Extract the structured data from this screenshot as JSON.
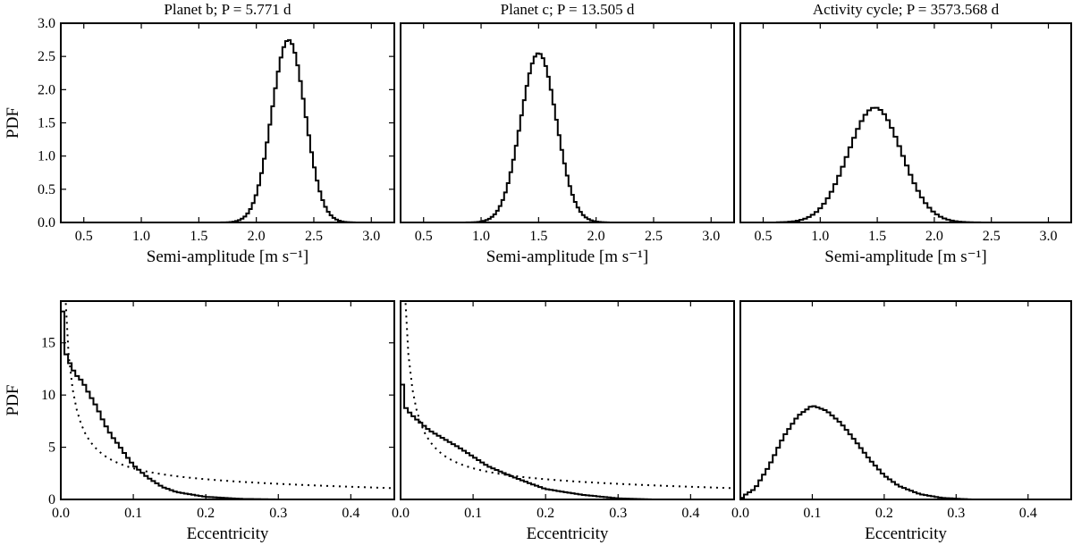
{
  "chart_data": [
    {
      "type": "histogram",
      "title": "Planet b; P = 5.771 d",
      "xlabel": "Semi-amplitude [m s⁻¹]",
      "ylabel": "PDF",
      "xlim": [
        0.3,
        3.2
      ],
      "ylim": [
        0,
        3.0
      ],
      "xticks": [
        "0.5",
        "1.0",
        "1.5",
        "2.0",
        "2.5",
        "3.0"
      ],
      "yticks": [
        "0.0",
        "0.5",
        "1.0",
        "1.5",
        "2.0",
        "2.5",
        "3.0"
      ],
      "grid": false,
      "series": [
        {
          "style": "solid-step",
          "dist": {
            "kind": "gauss",
            "mean": 2.28,
            "sigma": 0.145,
            "peak": 2.75,
            "start": 1.55,
            "end": 3.0,
            "n": 60
          }
        }
      ]
    },
    {
      "type": "histogram",
      "title": "Planet c; P = 13.505 d",
      "xlabel": "Semi-amplitude [m s⁻¹]",
      "ylabel": "",
      "xlim": [
        0.3,
        3.2
      ],
      "ylim": [
        0,
        3.0
      ],
      "xticks": [
        "0.5",
        "1.0",
        "1.5",
        "2.0",
        "2.5",
        "3.0"
      ],
      "yticks": [],
      "grid": false,
      "series": [
        {
          "style": "solid-step",
          "dist": {
            "kind": "gauss",
            "mean": 1.5,
            "sigma": 0.155,
            "peak": 2.55,
            "start": 0.85,
            "end": 2.25,
            "n": 60
          }
        }
      ]
    },
    {
      "type": "histogram",
      "title": "Activity cycle; P = 3573.568 d",
      "xlabel": "Semi-amplitude [m s⁻¹]",
      "ylabel": "",
      "xlim": [
        0.3,
        3.2
      ],
      "ylim": [
        0,
        3.0
      ],
      "xticks": [
        "0.5",
        "1.0",
        "1.5",
        "2.0",
        "2.5",
        "3.0"
      ],
      "yticks": [],
      "grid": false,
      "series": [
        {
          "style": "solid-step",
          "dist": {
            "kind": "gauss",
            "mean": 1.48,
            "sigma": 0.235,
            "peak": 1.73,
            "start": 0.62,
            "end": 2.6,
            "n": 60
          }
        }
      ]
    },
    {
      "type": "histogram",
      "title": "",
      "xlabel": "Eccentricity",
      "ylabel": "PDF",
      "xlim": [
        0.0,
        0.46
      ],
      "ylim": [
        0,
        19
      ],
      "xticks": [
        "0.0",
        "0.1",
        "0.2",
        "0.3",
        "0.4"
      ],
      "yticks": [
        "0",
        "5",
        "10",
        "15"
      ],
      "grid": false,
      "series": [
        {
          "style": "solid-step",
          "dist": {
            "kind": "points",
            "bin": 0.005,
            "end": 0.46,
            "points": [
              [
                0.0,
                18
              ],
              [
                0.005,
                14.4
              ],
              [
                0.01,
                13.4
              ],
              [
                0.02,
                12.0
              ],
              [
                0.03,
                11.3
              ],
              [
                0.04,
                10.0
              ],
              [
                0.05,
                8.8
              ],
              [
                0.06,
                7.3
              ],
              [
                0.07,
                6.1
              ],
              [
                0.08,
                5.2
              ],
              [
                0.09,
                4.2
              ],
              [
                0.1,
                3.3
              ],
              [
                0.12,
                2.1
              ],
              [
                0.14,
                1.2
              ],
              [
                0.16,
                0.7
              ],
              [
                0.2,
                0.25
              ],
              [
                0.25,
                0.05
              ],
              [
                0.3,
                0.0
              ]
            ]
          }
        },
        {
          "style": "dotted",
          "dist": {
            "kind": "prior",
            "a": 0.2,
            "b": 1.2,
            "start": 0.005,
            "end": 0.46,
            "n": 80
          }
        }
      ]
    },
    {
      "type": "histogram",
      "title": "",
      "xlabel": "Eccentricity",
      "ylabel": "",
      "xlim": [
        0.0,
        0.46
      ],
      "ylim": [
        0,
        19
      ],
      "xticks": [
        "0.0",
        "0.1",
        "0.2",
        "0.3",
        "0.4"
      ],
      "yticks": [],
      "grid": false,
      "series": [
        {
          "style": "solid-step",
          "dist": {
            "kind": "points",
            "bin": 0.005,
            "end": 0.46,
            "points": [
              [
                0.0,
                11.0
              ],
              [
                0.005,
                9.0
              ],
              [
                0.01,
                8.5
              ],
              [
                0.02,
                7.8
              ],
              [
                0.03,
                7.2
              ],
              [
                0.04,
                6.6
              ],
              [
                0.06,
                5.8
              ],
              [
                0.08,
                5.0
              ],
              [
                0.1,
                4.1
              ],
              [
                0.12,
                3.2
              ],
              [
                0.15,
                2.3
              ],
              [
                0.18,
                1.5
              ],
              [
                0.2,
                1.0
              ],
              [
                0.25,
                0.45
              ],
              [
                0.3,
                0.1
              ],
              [
                0.35,
                0.0
              ]
            ]
          }
        },
        {
          "style": "dotted",
          "dist": {
            "kind": "prior",
            "a": 0.2,
            "b": 1.2,
            "start": 0.005,
            "end": 0.46,
            "n": 80
          }
        }
      ]
    },
    {
      "type": "histogram",
      "title": "",
      "xlabel": "Eccentricity",
      "ylabel": "",
      "xlim": [
        0.0,
        0.46
      ],
      "ylim": [
        0,
        19
      ],
      "xticks": [
        "0.0",
        "0.1",
        "0.2",
        "0.3",
        "0.4"
      ],
      "yticks": [],
      "grid": false,
      "series": [
        {
          "style": "solid-step",
          "dist": {
            "kind": "points",
            "bin": 0.005,
            "end": 0.46,
            "points": [
              [
                0.0,
                0.15
              ],
              [
                0.02,
                1.0
              ],
              [
                0.04,
                3.2
              ],
              [
                0.06,
                6.0
              ],
              [
                0.08,
                8.0
              ],
              [
                0.1,
                9.0
              ],
              [
                0.12,
                8.5
              ],
              [
                0.14,
                7.3
              ],
              [
                0.16,
                5.6
              ],
              [
                0.18,
                3.8
              ],
              [
                0.2,
                2.3
              ],
              [
                0.22,
                1.3
              ],
              [
                0.25,
                0.5
              ],
              [
                0.28,
                0.15
              ],
              [
                0.32,
                0.0
              ]
            ]
          }
        }
      ]
    }
  ]
}
